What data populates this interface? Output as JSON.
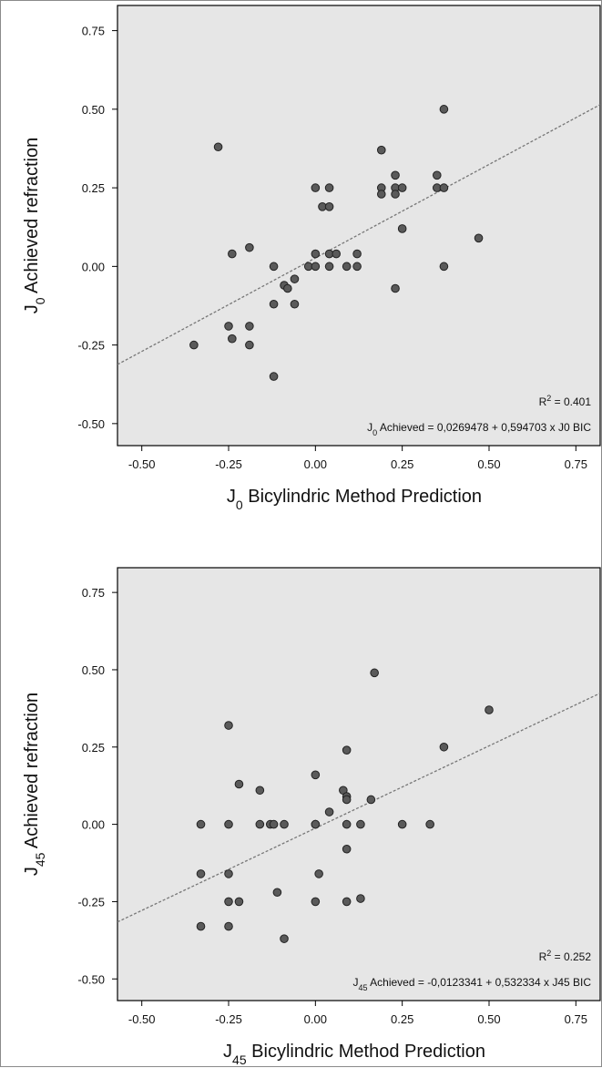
{
  "colors": {
    "plot_bg": "#e6e6e6",
    "point_fill": "#5a5a5a",
    "point_stroke": "#222222",
    "fit_line": "#777777",
    "text": "#111111"
  },
  "chart_data": [
    {
      "type": "scatter",
      "xlabel": {
        "prefix": "J",
        "sub": "0",
        "rest": " Bicylindric Method Prediction"
      },
      "ylabel": {
        "prefix": "J",
        "sub": "0",
        "rest": " Achieved  refraction"
      },
      "xlim": [
        -0.57,
        0.82
      ],
      "ylim": [
        -0.57,
        0.83
      ],
      "xticks": [
        "-0.50",
        "-0.25",
        "0.00",
        "0.25",
        "0.50",
        "0.75"
      ],
      "yticks": [
        "-0.50",
        "-0.25",
        "0.00",
        "0.25",
        "0.50",
        "0.75"
      ],
      "grid": false,
      "r2": {
        "prefix": "R",
        "sup": "2",
        "rest": " = 0.401"
      },
      "equation": {
        "prefix": "J",
        "sub": "0",
        "rest": " Achieved = 0,0269478 + 0,594703 x J0 BIC"
      },
      "fit": {
        "intercept": 0.0269478,
        "slope": 0.594703
      },
      "points": [
        [
          -0.35,
          -0.25
        ],
        [
          -0.28,
          0.38
        ],
        [
          -0.25,
          -0.19
        ],
        [
          -0.24,
          0.04
        ],
        [
          -0.24,
          -0.23
        ],
        [
          -0.19,
          0.06
        ],
        [
          -0.19,
          -0.19
        ],
        [
          -0.19,
          -0.25
        ],
        [
          -0.12,
          0.0
        ],
        [
          -0.12,
          -0.35
        ],
        [
          -0.12,
          -0.12
        ],
        [
          -0.09,
          -0.06
        ],
        [
          -0.08,
          -0.07
        ],
        [
          -0.06,
          -0.04
        ],
        [
          -0.06,
          -0.12
        ],
        [
          -0.02,
          0.0
        ],
        [
          0.0,
          0.0
        ],
        [
          0.0,
          0.04
        ],
        [
          0.0,
          0.25
        ],
        [
          0.02,
          0.19
        ],
        [
          0.04,
          0.19
        ],
        [
          0.04,
          0.25
        ],
        [
          0.04,
          0.04
        ],
        [
          0.04,
          0.0
        ],
        [
          0.06,
          0.04
        ],
        [
          0.09,
          0.0
        ],
        [
          0.12,
          0.04
        ],
        [
          0.12,
          0.0
        ],
        [
          0.19,
          0.37
        ],
        [
          0.19,
          0.25
        ],
        [
          0.19,
          0.23
        ],
        [
          0.23,
          0.29
        ],
        [
          0.23,
          0.25
        ],
        [
          0.23,
          0.23
        ],
        [
          0.23,
          -0.07
        ],
        [
          0.25,
          0.25
        ],
        [
          0.25,
          0.12
        ],
        [
          0.35,
          0.29
        ],
        [
          0.35,
          0.25
        ],
        [
          0.37,
          0.5
        ],
        [
          0.37,
          0.25
        ],
        [
          0.37,
          0.0
        ],
        [
          0.47,
          0.09
        ]
      ]
    },
    {
      "type": "scatter",
      "xlabel": {
        "prefix": "J",
        "sub": "45",
        "rest": " Bicylindric Method Prediction"
      },
      "ylabel": {
        "prefix": "J",
        "sub": "45",
        "rest": " Achieved  refraction"
      },
      "xlim": [
        -0.57,
        0.82
      ],
      "ylim": [
        -0.57,
        0.83
      ],
      "xticks": [
        "-0.50",
        "-0.25",
        "0.00",
        "0.25",
        "0.50",
        "0.75"
      ],
      "yticks": [
        "-0.50",
        "-0.25",
        "0.00",
        "0.25",
        "0.50",
        "0.75"
      ],
      "grid": false,
      "r2": {
        "prefix": "R",
        "sup": "2",
        "rest": " = 0.252"
      },
      "equation": {
        "prefix": "J",
        "sub": "45",
        "rest": " Achieved = -0,0123341 + 0,532334 x J45 BIC"
      },
      "fit": {
        "intercept": -0.0123341,
        "slope": 0.532334
      },
      "points": [
        [
          -0.33,
          0.0
        ],
        [
          -0.33,
          -0.16
        ],
        [
          -0.33,
          -0.33
        ],
        [
          -0.25,
          0.32
        ],
        [
          -0.25,
          0.0
        ],
        [
          -0.25,
          -0.16
        ],
        [
          -0.25,
          -0.25
        ],
        [
          -0.25,
          -0.33
        ],
        [
          -0.22,
          0.13
        ],
        [
          -0.22,
          -0.25
        ],
        [
          -0.16,
          0.11
        ],
        [
          -0.16,
          0.0
        ],
        [
          -0.13,
          0.0
        ],
        [
          -0.12,
          0.0
        ],
        [
          -0.11,
          -0.22
        ],
        [
          -0.09,
          0.0
        ],
        [
          -0.09,
          -0.37
        ],
        [
          0.0,
          0.16
        ],
        [
          0.0,
          0.0
        ],
        [
          0.0,
          0.0
        ],
        [
          0.0,
          -0.25
        ],
        [
          0.01,
          -0.16
        ],
        [
          0.04,
          0.04
        ],
        [
          0.08,
          0.11
        ],
        [
          0.09,
          0.24
        ],
        [
          0.09,
          0.09
        ],
        [
          0.09,
          0.08
        ],
        [
          0.09,
          0.0
        ],
        [
          0.09,
          -0.08
        ],
        [
          0.09,
          -0.25
        ],
        [
          0.13,
          0.0
        ],
        [
          0.13,
          -0.24
        ],
        [
          0.16,
          0.08
        ],
        [
          0.17,
          0.49
        ],
        [
          0.25,
          0.0
        ],
        [
          0.33,
          0.0
        ],
        [
          0.37,
          0.25
        ],
        [
          0.5,
          0.37
        ]
      ]
    }
  ]
}
